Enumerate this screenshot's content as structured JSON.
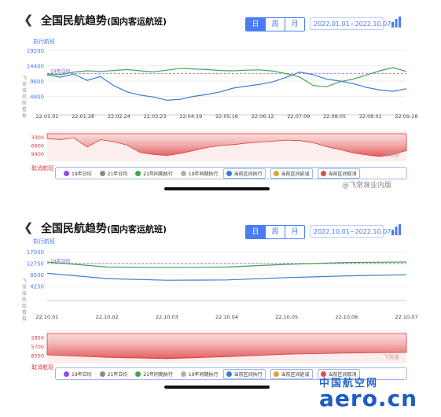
{
  "panels": [
    {
      "back_icon": "chevron-left-icon",
      "title": "全国民航趋势",
      "subtitle": "(国内客运航班)",
      "segments": [
        "日",
        "周",
        "月"
      ],
      "date_range": "2022.01.01~2022.10.07 ⌄",
      "upper_caption": "执行航班",
      "upper_ticks": [
        "19200",
        "14400",
        "9600",
        "4800"
      ],
      "ref_label": "19年日均",
      "x_labels": [
        "22.01.01",
        "22.01.28",
        "22.02.24",
        "22.03.23",
        "22.04.19",
        "22.05.16",
        "22.06.12",
        "22.07.09",
        "22.08.05",
        "22.09.01",
        "22.09.28"
      ],
      "vertical_label": "飞常准民航看板",
      "lower_ticks": [
        "3300",
        "6600",
        "9900"
      ],
      "lower_caption": "取消航班",
      "watermark_logo": "飞常准",
      "legend": [
        "19年日均",
        "21年日均",
        "21年同期执行",
        "19年同期执行",
        "当前区间执行",
        "当前区间延误",
        "当前区间取消"
      ]
    },
    {
      "back_icon": "chevron-left-icon",
      "title": "全国民航趋势",
      "subtitle": "(国内客运航班)",
      "segments": [
        "日",
        "周",
        "月"
      ],
      "date_range": "2022.10.01~2022.10.07 ⌄",
      "upper_caption": "执行航班",
      "upper_ticks": [
        "17000",
        "12750",
        "8500",
        "4250"
      ],
      "ref_label": "19年日均",
      "x_labels": [
        "22.10.01",
        "22.10.02",
        "22.10.03",
        "22.10.04",
        "22.10.05",
        "22.10.06",
        "22.10.07"
      ],
      "vertical_label": "飞常准民航看板",
      "lower_ticks": [
        "2850",
        "5700",
        "8550"
      ],
      "lower_caption": "取消航班",
      "watermark_logo": "飞常准",
      "legend": [
        "19年日均",
        "21年日均",
        "21年同期执行",
        "19年同期执行",
        "当前区间执行",
        "当前区间延误",
        "当前区间取消"
      ]
    }
  ],
  "legend_colors": [
    "#8a4fe0",
    "#8a8a8a",
    "#3fa64a",
    "#b0b0b0",
    "#3a7bd5",
    "#e0a030",
    "#e04a4a"
  ],
  "watermarks": {
    "weibo": "@飞常准业内版",
    "site_cn": "中国航空网",
    "site_en": "aero.cn"
  },
  "chart_data": [
    {
      "type": "line",
      "x_range": [
        "22.01.01",
        "22.10.07"
      ],
      "ylim": [
        0,
        19200
      ],
      "reference_line": {
        "name": "19年日均",
        "value": 12000
      },
      "series": [
        {
          "name": "21年同期执行",
          "color": "#3fa64a",
          "values": [
            11800,
            11600,
            12400,
            12800,
            12600,
            12900,
            13200,
            12800,
            12500,
            13000,
            13600,
            13400,
            13200,
            12900,
            12800,
            13000,
            13100,
            12700,
            11900,
            10800,
            8200,
            7800,
            9400,
            10200,
            11500,
            12800,
            13800,
            12600
          ]
        },
        {
          "name": "当前区间执行",
          "color": "#3a7bd5",
          "values": [
            11500,
            10800,
            11800,
            9800,
            11000,
            8200,
            6200,
            5200,
            4600,
            3600,
            3900,
            4800,
            5400,
            6200,
            7400,
            8000,
            8600,
            9400,
            10800,
            12400,
            11600,
            10200,
            9600,
            8800,
            7600,
            6800,
            6400,
            7200
          ]
        }
      ],
      "lower_series": {
        "name": "当前区间取消",
        "ylim": [
          0,
          9900
        ],
        "values": [
          2000,
          2400,
          1600,
          5400,
          2400,
          3200,
          4600,
          7600,
          8400,
          8800,
          8000,
          6800,
          5600,
          4800,
          4400,
          3800,
          3400,
          3000,
          2600,
          2800,
          3600,
          5200,
          6400,
          7800,
          8600,
          9200,
          8400,
          6800
        ]
      }
    },
    {
      "type": "line",
      "categories": [
        "22.10.01",
        "22.10.02",
        "22.10.03",
        "22.10.04",
        "22.10.05",
        "22.10.06",
        "22.10.07"
      ],
      "ylim": [
        0,
        17000
      ],
      "reference_line": {
        "name": "19年日均",
        "value": 12600
      },
      "series": [
        {
          "name": "21年同期执行",
          "color": "#3fa64a",
          "values": [
            13200,
            11300,
            11200,
            11300,
            12300,
            13000,
            13200
          ]
        },
        {
          "name": "当前区间执行",
          "color": "#3a7bd5",
          "values": [
            9000,
            7000,
            6400,
            6500,
            7400,
            8000,
            8400
          ]
        }
      ],
      "lower_series": {
        "name": "当前区间取消",
        "ylim": [
          0,
          8550
        ],
        "values": [
          6800,
          7600,
          8000,
          7400,
          6600,
          6200,
          6000
        ]
      }
    }
  ]
}
